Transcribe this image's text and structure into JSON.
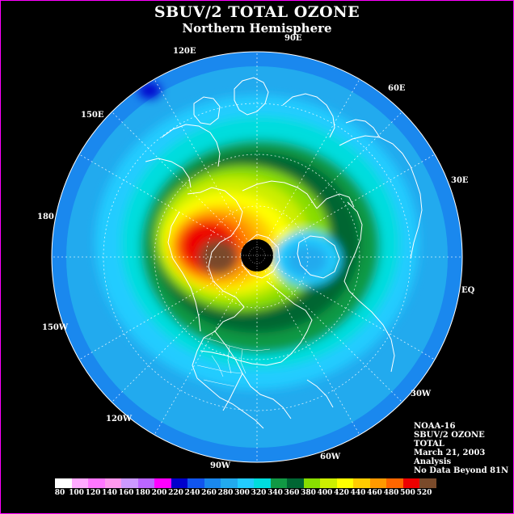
{
  "header": {
    "title": "SBUV/2 TOTAL OZONE",
    "subtitle": "Northern Hemisphere"
  },
  "longitude_labels": [
    {
      "id": "90e",
      "text": "90E"
    },
    {
      "id": "120e",
      "text": "120E"
    },
    {
      "id": "60e",
      "text": "60E"
    },
    {
      "id": "150e",
      "text": "150E"
    },
    {
      "id": "30e",
      "text": "30E"
    },
    {
      "id": "180",
      "text": "180"
    },
    {
      "id": "eq",
      "text": "EQ"
    },
    {
      "id": "150w",
      "text": "150W"
    },
    {
      "id": "30w",
      "text": "30W"
    },
    {
      "id": "120w",
      "text": "120W"
    },
    {
      "id": "60w",
      "text": "60W"
    },
    {
      "id": "90w",
      "text": "90W"
    }
  ],
  "info": {
    "satellite": "NOAA-16",
    "product": "SBUV/2 OZONE",
    "quantity": "TOTAL",
    "date": "March 21, 2003",
    "type": "Analysis",
    "note": "No Data Beyond 81N"
  },
  "legend": {
    "labels": [
      "80",
      "100",
      "120",
      "140",
      "160",
      "180",
      "200",
      "220",
      "240",
      "260",
      "280",
      "300",
      "320",
      "340",
      "360",
      "380",
      "400",
      "420",
      "440",
      "460",
      "480",
      "500",
      "520"
    ],
    "colors": [
      "#ffffff",
      "#ffaaff",
      "#ff77ff",
      "#ff99ee",
      "#cc99ff",
      "#bb66ff",
      "#ff00ff",
      "#0000cc",
      "#1155ee",
      "#1a88ee",
      "#22aaee",
      "#22ccff",
      "#00dddd",
      "#119944",
      "#006633",
      "#88dd00",
      "#ccee00",
      "#ffff00",
      "#ffcc00",
      "#ff9900",
      "#ff6600",
      "#ee0000",
      "#7a4a2a"
    ]
  },
  "colors": {
    "background": "#000000",
    "frame": "#ff00ff",
    "coastline": "#ffffff"
  }
}
